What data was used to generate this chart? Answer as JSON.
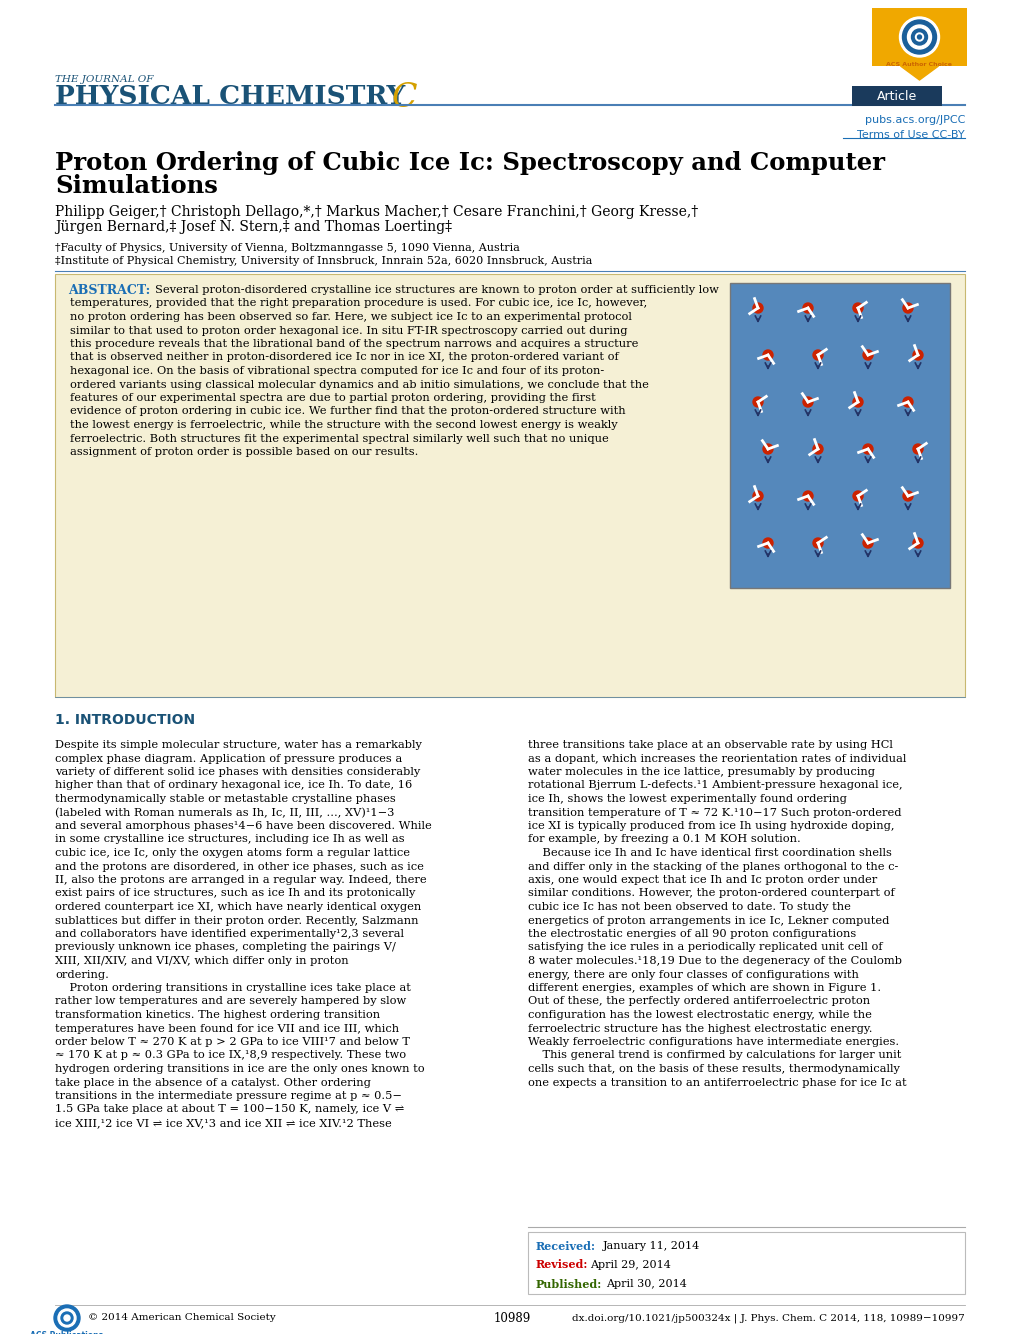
{
  "title_line1": "Proton Ordering of Cubic Ice Ic: Spectroscopy and Computer",
  "title_line2": "Simulations",
  "author_line1": "Philipp Geiger,† Christoph Dellago,*,† Markus Macher,† Cesare Franchini,† Georg Kresse,†",
  "author_line2": "Jürgen Bernard,‡ Josef N. Stern,‡ and Thomas Loerting‡",
  "affil1": "†Faculty of Physics, University of Vienna, Boltzmanngasse 5, 1090 Vienna, Austria",
  "affil2": "‡Institute of Physical Chemistry, University of Innsbruck, Innrain 52a, 6020 Innsbruck, Austria",
  "journal_line1": "THE JOURNAL OF",
  "journal_line2": "PHYSICAL CHEMISTRY",
  "journal_letter": "C",
  "article_label": "Article",
  "pubs_url": "pubs.acs.org/JPCC",
  "terms": "Terms of Use CC-BY",
  "abstract_label": "ABSTRACT:",
  "abstract_lines": [
    "Several proton-disordered crystalline ice structures are known to proton order at sufficiently low",
    "temperatures, provided that the right preparation procedure is used. For cubic ice, ice Ic, however,",
    "no proton ordering has been observed so far. Here, we subject ice Ic to an experimental protocol",
    "similar to that used to proton order hexagonal ice. In situ FT-IR spectroscopy carried out during",
    "this procedure reveals that the librational band of the spectrum narrows and acquires a structure",
    "that is observed neither in proton-disordered ice Ic nor in ice XI, the proton-ordered variant of",
    "hexagonal ice. On the basis of vibrational spectra computed for ice Ic and four of its proton-",
    "ordered variants using classical molecular dynamics and ab initio simulations, we conclude that the",
    "features of our experimental spectra are due to partial proton ordering, providing the first",
    "evidence of proton ordering in cubic ice. We further find that the proton-ordered structure with",
    "the lowest energy is ferroelectric, while the structure with the second lowest energy is weakly",
    "ferroelectric. Both structures fit the experimental spectral similarly well such that no unique",
    "assignment of proton order is possible based on our results."
  ],
  "section1_title": "1. INTRODUCTION",
  "col1_lines": [
    "Despite its simple molecular structure, water has a remarkably",
    "complex phase diagram. Application of pressure produces a",
    "variety of different solid ice phases with densities considerably",
    "higher than that of ordinary hexagonal ice, ice Ih. To date, 16",
    "thermodynamically stable or metastable crystalline phases",
    "(labeled with Roman numerals as Ih, Ic, II, III, ..., XV)¹1−3",
    "and several amorphous phases¹4−6 have been discovered. While",
    "in some crystalline ice structures, including ice Ih as well as",
    "cubic ice, ice Ic, only the oxygen atoms form a regular lattice",
    "and the protons are disordered, in other ice phases, such as ice",
    "II, also the protons are arranged in a regular way. Indeed, there",
    "exist pairs of ice structures, such as ice Ih and its protonically",
    "ordered counterpart ice XI, which have nearly identical oxygen",
    "sublattices but differ in their proton order. Recently, Salzmann",
    "and collaborators have identified experimentally¹2,3 several",
    "previously unknown ice phases, completing the pairings V/",
    "XIII, XII/XIV, and VI/XV, which differ only in proton",
    "ordering.",
    "    Proton ordering transitions in crystalline ices take place at",
    "rather low temperatures and are severely hampered by slow",
    "transformation kinetics. The highest ordering transition",
    "temperatures have been found for ice VII and ice III, which",
    "order below T ≈ 270 K at p > 2 GPa to ice VIII¹7 and below T",
    "≈ 170 K at p ≈ 0.3 GPa to ice IX,¹8,9 respectively. These two",
    "hydrogen ordering transitions in ice are the only ones known to",
    "take place in the absence of a catalyst. Other ordering",
    "transitions in the intermediate pressure regime at p ≈ 0.5−",
    "1.5 GPa take place at about T = 100−150 K, namely, ice V ⇌",
    "ice XIII,¹2 ice VI ⇌ ice XV,¹3 and ice XII ⇌ ice XIV.¹2 These"
  ],
  "col2_lines": [
    "three transitions take place at an observable rate by using HCl",
    "as a dopant, which increases the reorientation rates of individual",
    "water molecules in the ice lattice, presumably by producing",
    "rotational Bjerrum L-defects.¹1 Ambient-pressure hexagonal ice,",
    "ice Ih, shows the lowest experimentally found ordering",
    "transition temperature of T ≈ 72 K.¹10−17 Such proton-ordered",
    "ice XI is typically produced from ice Ih using hydroxide doping,",
    "for example, by freezing a 0.1 M KOH solution.",
    "    Because ice Ih and Ic have identical first coordination shells",
    "and differ only in the stacking of the planes orthogonal to the c-",
    "axis, one would expect that ice Ih and Ic proton order under",
    "similar conditions. However, the proton-ordered counterpart of",
    "cubic ice Ic has not been observed to date. To study the",
    "energetics of proton arrangements in ice Ic, Lekner computed",
    "the electrostatic energies of all 90 proton configurations",
    "satisfying the ice rules in a periodically replicated unit cell of",
    "8 water molecules.¹18,19 Due to the degeneracy of the Coulomb",
    "energy, there are only four classes of configurations with",
    "different energies, examples of which are shown in Figure 1.",
    "Out of these, the perfectly ordered antiferroelectric proton",
    "configuration has the lowest electrostatic energy, while the",
    "ferroelectric structure has the highest electrostatic energy.",
    "Weakly ferroelectric configurations have intermediate energies.",
    "    This general trend is confirmed by calculations for larger unit",
    "cells such that, on the basis of these results, thermodynamically",
    "one expects a transition to an antiferroelectric phase for ice Ic at"
  ],
  "received_label": "Received:",
  "received_date": "January 11, 2014",
  "revised_label": "Revised:",
  "revised_date": "April 29, 2014",
  "published_label": "Published:",
  "published_date": "April 30, 2014",
  "footer_left": "© 2014 American Chemical Society",
  "footer_page": "10989",
  "footer_doi": "dx.doi.org/10.1021/jp500324x | J. Phys. Chem. C 2014, 118, 10989−10997",
  "bg_color": "#ffffff",
  "abstract_bg": "#f5f0d5",
  "header_blue": "#1a5276",
  "section_color": "#1a5276",
  "article_bg": "#1a3a5c",
  "badge_gold": "#f0a800",
  "link_color": "#1a6eb5",
  "divider_color": "#4a7fb5",
  "received_color": "#1a6eb5",
  "revised_color": "#cc0000",
  "published_color": "#336600"
}
